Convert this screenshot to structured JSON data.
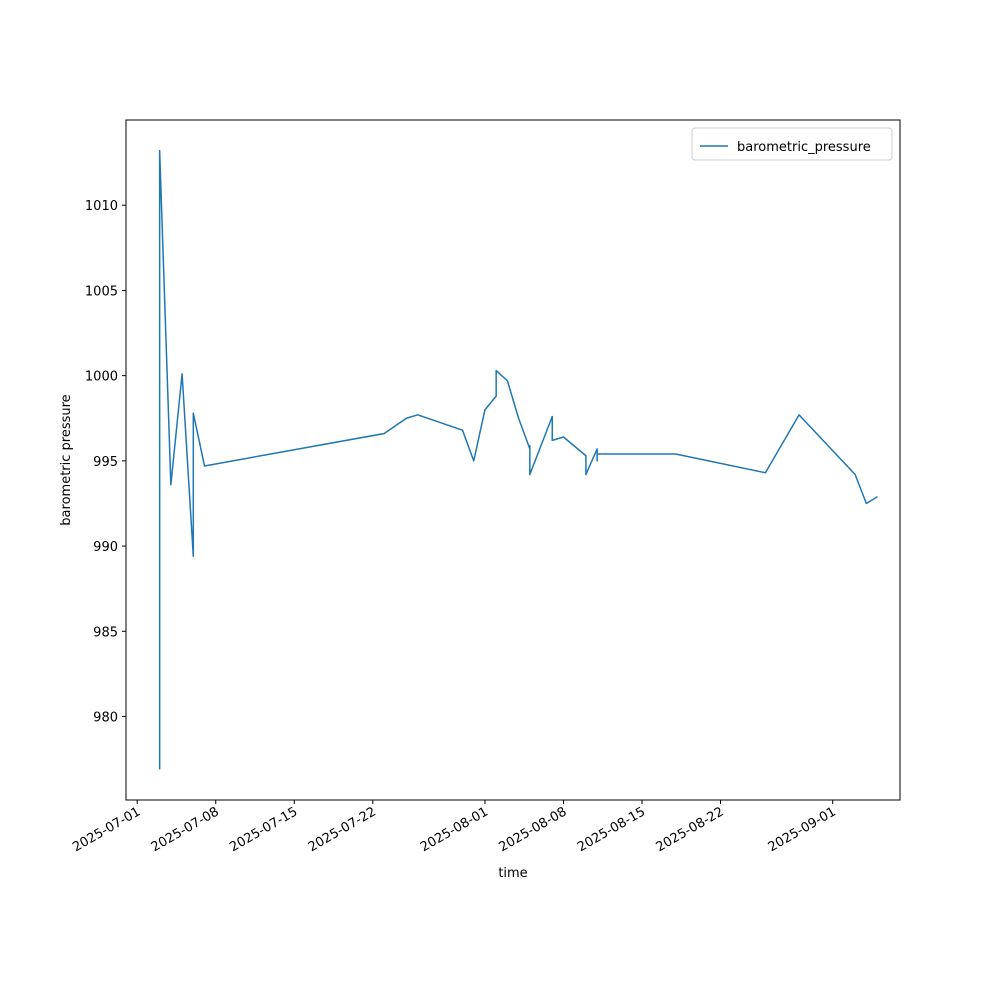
{
  "chart_data": {
    "type": "line",
    "xlabel": "time",
    "ylabel": "barometric pressure",
    "x": [
      "2025-07-03",
      "2025-07-03",
      "2025-07-03",
      "2025-07-03",
      "2025-07-04",
      "2025-07-05",
      "2025-07-06",
      "2025-07-06",
      "2025-07-07",
      "2025-07-23",
      "2025-07-25",
      "2025-07-26",
      "2025-07-30",
      "2025-07-31",
      "2025-08-01",
      "2025-08-02",
      "2025-08-02",
      "2025-08-03",
      "2025-08-03",
      "2025-08-04",
      "2025-08-05",
      "2025-08-05",
      "2025-08-05",
      "2025-08-05",
      "2025-08-07",
      "2025-08-07",
      "2025-08-08",
      "2025-08-10",
      "2025-08-10",
      "2025-08-11",
      "2025-08-11",
      "2025-08-11",
      "2025-08-18",
      "2025-08-26",
      "2025-08-29",
      "2025-09-03",
      "2025-09-04",
      "2025-09-05"
    ],
    "series": [
      {
        "name": "barometric_pressure",
        "color": "#1f77b4",
        "values": [
          976.9,
          984.0,
          989.7,
          1013.2,
          993.6,
          1000.1,
          989.4,
          997.8,
          994.7,
          996.6,
          997.5,
          997.7,
          996.8,
          995.0,
          998.0,
          998.8,
          1000.3,
          999.7,
          999.7,
          997.5,
          995.7,
          995.9,
          995.2,
          994.2,
          997.6,
          996.2,
          996.4,
          995.3,
          994.2,
          995.7,
          995.0,
          995.4,
          995.4,
          994.3,
          997.7,
          994.2,
          992.5,
          992.9
        ]
      }
    ],
    "xlim": [
      "2025-06-30",
      "2025-09-07"
    ],
    "xticks": [
      "2025-07-01",
      "2025-07-08",
      "2025-07-15",
      "2025-07-22",
      "2025-08-01",
      "2025-08-08",
      "2025-08-15",
      "2025-08-22",
      "2025-09-01"
    ],
    "ylim": [
      975.1,
      1015.0
    ],
    "yticks": [
      980,
      985,
      990,
      995,
      1000,
      1005,
      1010
    ],
    "legend": "upper right",
    "grid": false
  }
}
